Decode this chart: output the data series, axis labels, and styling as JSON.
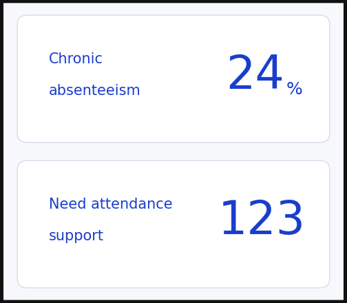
{
  "background_color": "#111111",
  "outer_bg_color": "#f7f8fc",
  "card_color": "#ffffff",
  "card_border_color": "#d8dce8",
  "outer_border_color": "#cccccc",
  "text_color": "#1a3ecc",
  "tile1_label_line1": "Chronic",
  "tile1_label_line2": "absenteeism",
  "tile1_value": "24",
  "tile1_suffix": "%",
  "tile2_label_line1": "Need attendance",
  "tile2_label_line2": "support",
  "tile2_value": "123",
  "tile2_suffix": "",
  "label_fontsize": 15,
  "value_fontsize": 48,
  "suffix_fontsize": 18,
  "fig_width": 5.04,
  "fig_height": 4.4,
  "dpi": 100
}
